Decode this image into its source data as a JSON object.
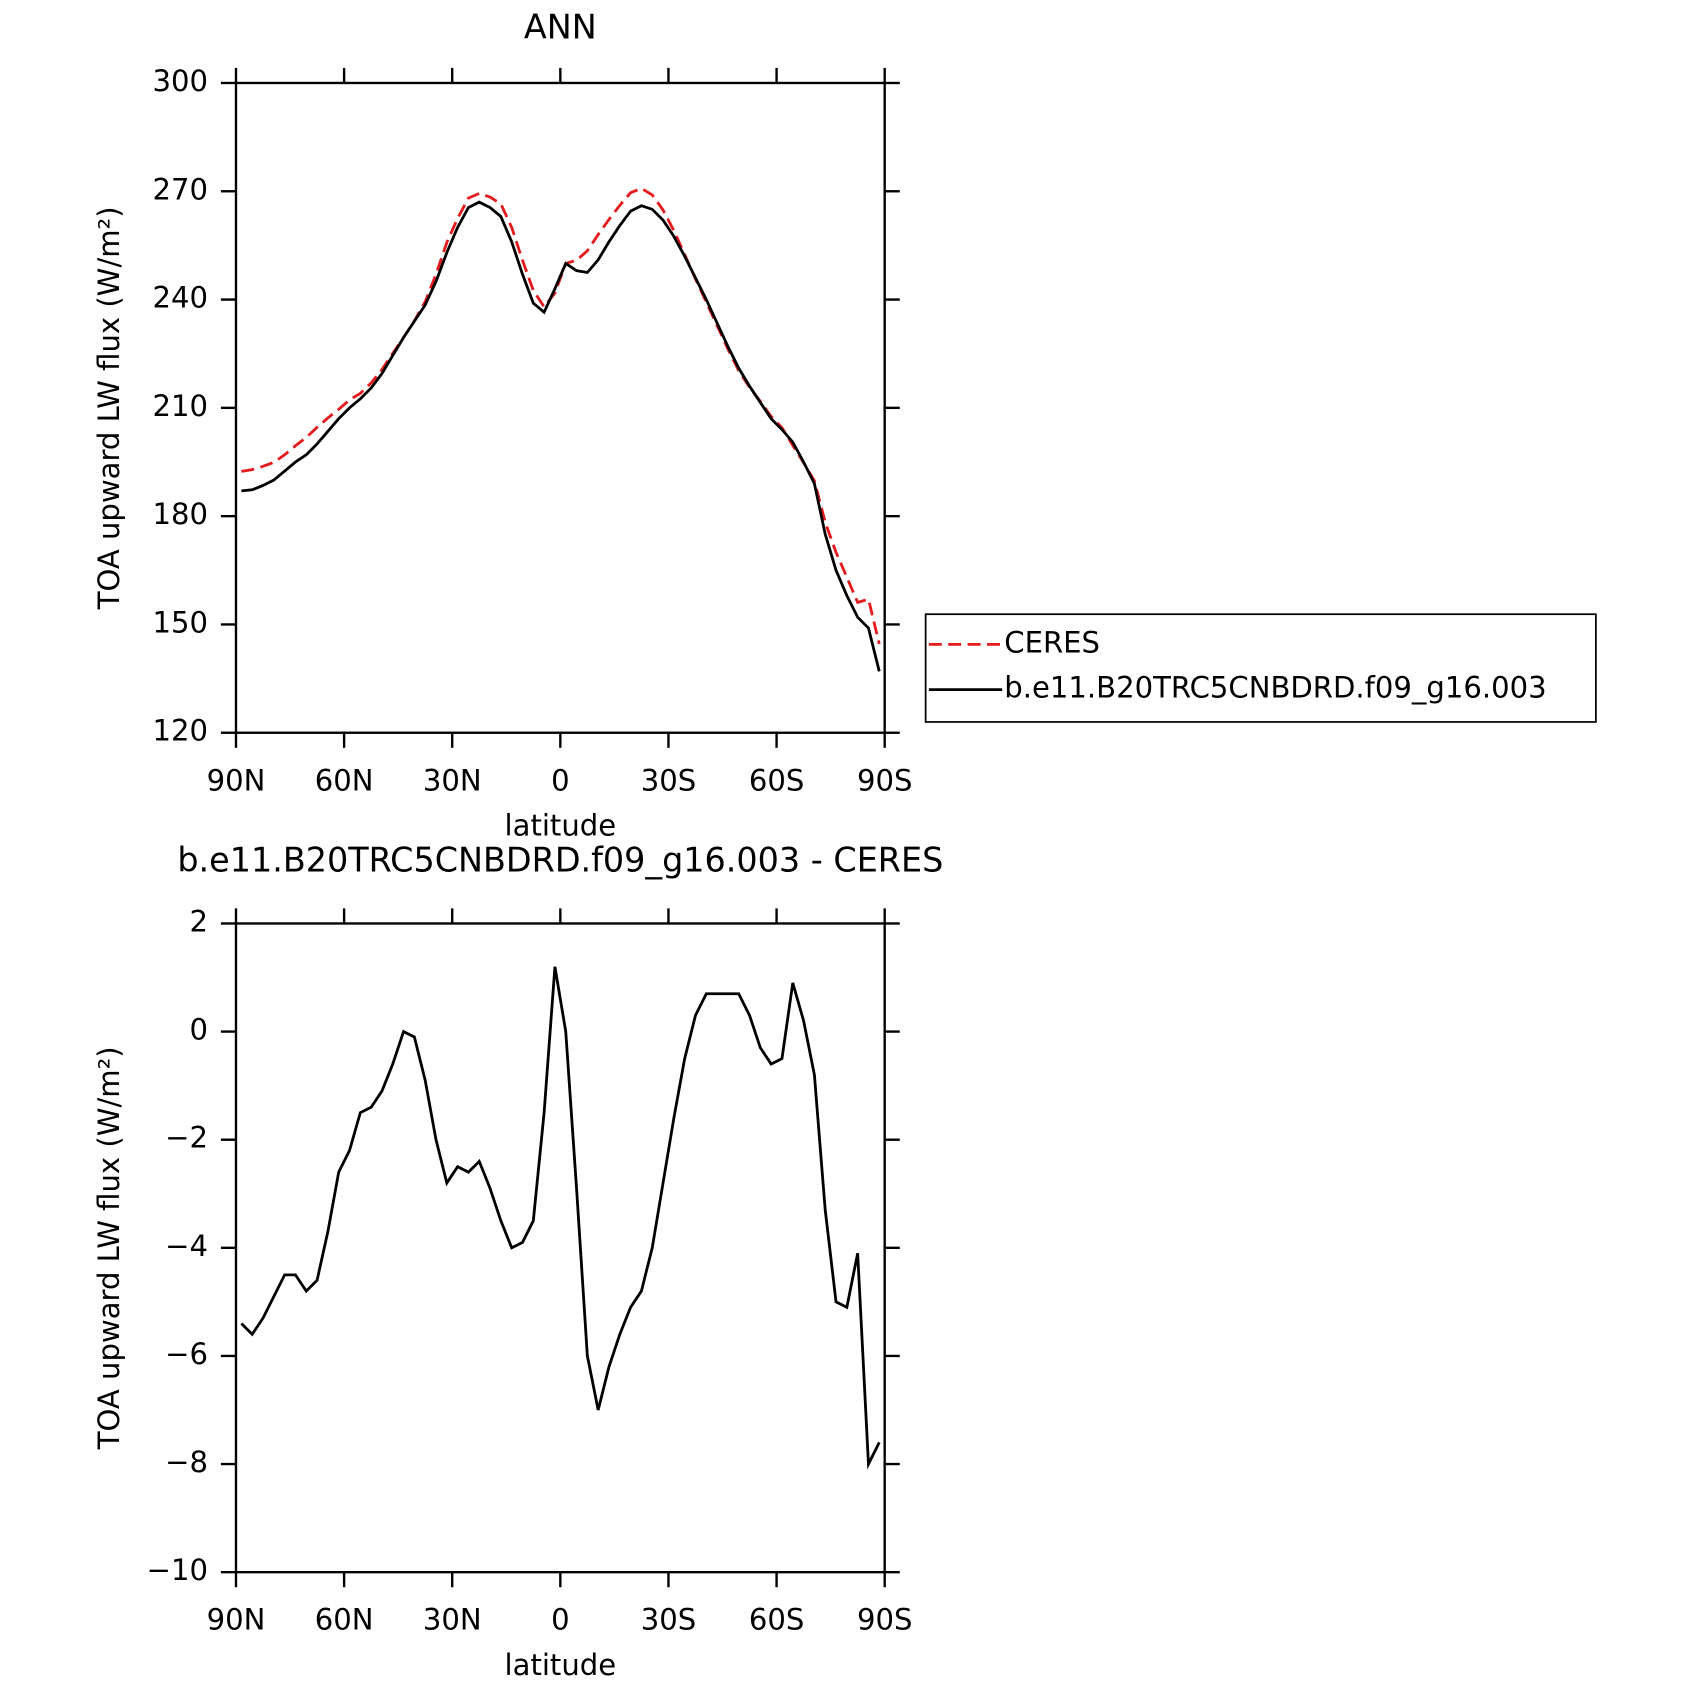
{
  "chart_data": [
    {
      "type": "line",
      "title": "ANN",
      "x_label": "latitude",
      "y_label": "TOA upward LW flux (W/m²)",
      "x": [
        88.5,
        85.5,
        82.5,
        79.5,
        76.5,
        73.5,
        70.5,
        67.5,
        64.5,
        61.5,
        58.5,
        55.5,
        52.5,
        49.5,
        46.5,
        43.5,
        40.5,
        37.5,
        34.5,
        31.5,
        28.5,
        25.5,
        22.5,
        19.5,
        16.5,
        13.5,
        10.5,
        7.5,
        4.5,
        1.5,
        -1.5,
        -4.5,
        -7.5,
        -10.5,
        -13.5,
        -16.5,
        -19.5,
        -22.5,
        -25.5,
        -28.5,
        -31.5,
        -34.5,
        -37.5,
        -40.5,
        -43.5,
        -46.5,
        -49.5,
        -52.5,
        -55.5,
        -58.5,
        -61.5,
        -64.5,
        -67.5,
        -70.5,
        -73.5,
        -76.5,
        -79.5,
        -82.5,
        -85.5,
        -88.5
      ],
      "series": [
        {
          "name": "CERES",
          "color": "#e41a1c",
          "dash": true,
          "values": [
            192.4,
            192.9,
            193.8,
            194.9,
            197,
            199.5,
            201.8,
            204.6,
            207.2,
            209.6,
            212.2,
            214,
            216.9,
            220.6,
            225.1,
            229.5,
            234.1,
            239.4,
            247,
            255.8,
            262.5,
            268.1,
            269.4,
            268.4,
            266.5,
            260,
            250.9,
            242.5,
            238,
            241.8,
            250,
            250.9,
            253.5,
            258,
            262.2,
            266.1,
            269.6,
            270.8,
            269,
            264.8,
            259.1,
            252.5,
            245.7,
            239.3,
            232.8,
            226.3,
            220.3,
            215.7,
            211.8,
            207.6,
            204.5,
            199.6,
            194.8,
            189.8,
            178.3,
            170,
            163.1,
            156.1,
            157,
            144.6
          ]
        },
        {
          "name": "b.e11.B20TRC5CNBDRD.f09_g16.003",
          "color": "#000000",
          "dash": false,
          "values": [
            187,
            187.3,
            188.5,
            190,
            192.5,
            195,
            197,
            200,
            203.5,
            207,
            210,
            212.5,
            215.5,
            219.5,
            224.5,
            229.5,
            234,
            238.5,
            245,
            253,
            260,
            265.5,
            267,
            265.5,
            263,
            256,
            247,
            239,
            236.5,
            243,
            250,
            248,
            247.5,
            251,
            256,
            260.5,
            264.5,
            266,
            265,
            262,
            257.5,
            252,
            246,
            240,
            233.5,
            227,
            221,
            216,
            211.5,
            207,
            204,
            200.5,
            195,
            189,
            175,
            165,
            158,
            152,
            149,
            137
          ]
        }
      ],
      "xlim": [
        90,
        -90
      ],
      "xticks": [
        {
          "value": 90,
          "label": "90N"
        },
        {
          "value": 60,
          "label": "60N"
        },
        {
          "value": 30,
          "label": "30N"
        },
        0,
        {
          "value": -30,
          "label": "30S"
        },
        {
          "value": -60,
          "label": "60S"
        },
        {
          "value": -90,
          "label": "90S"
        }
      ],
      "ylim": [
        120,
        300
      ],
      "yticks": [
        120,
        150,
        180,
        210,
        240,
        270,
        300
      ],
      "legend": "right"
    },
    {
      "type": "line",
      "title": "b.e11.B20TRC5CNBDRD.f09_g16.003 - CERES",
      "x_label": "latitude",
      "y_label": "TOA upward LW flux (W/m²)",
      "x": [
        88.5,
        85.5,
        82.5,
        79.5,
        76.5,
        73.5,
        70.5,
        67.5,
        64.5,
        61.5,
        58.5,
        55.5,
        52.5,
        49.5,
        46.5,
        43.5,
        40.5,
        37.5,
        34.5,
        31.5,
        28.5,
        25.5,
        22.5,
        19.5,
        16.5,
        13.5,
        10.5,
        7.5,
        4.5,
        1.5,
        -1.5,
        -4.5,
        -7.5,
        -10.5,
        -13.5,
        -16.5,
        -19.5,
        -22.5,
        -25.5,
        -28.5,
        -31.5,
        -34.5,
        -37.5,
        -40.5,
        -43.5,
        -46.5,
        -49.5,
        -52.5,
        -55.5,
        -58.5,
        -61.5,
        -64.5,
        -67.5,
        -70.5,
        -73.5,
        -76.5,
        -79.5,
        -82.5,
        -85.5,
        -88.5
      ],
      "series": [
        {
          "color": "#000000",
          "values": [
            -5.4,
            -5.6,
            -5.3,
            -4.9,
            -4.5,
            -4.5,
            -4.8,
            -4.6,
            -3.7,
            -2.6,
            -2.2,
            -1.5,
            -1.4,
            -1.1,
            -0.6,
            0,
            -0.1,
            -0.9,
            -2.0,
            -2.8,
            -2.5,
            -2.6,
            -2.4,
            -2.9,
            -3.5,
            -4.0,
            -3.9,
            -3.5,
            -1.5,
            1.2,
            0,
            -2.9,
            -6.0,
            -7.0,
            -6.2,
            -5.6,
            -5.1,
            -4.8,
            -4.0,
            -2.8,
            -1.6,
            -0.5,
            0.3,
            0.7,
            0.7,
            0.7,
            0.7,
            0.3,
            -0.3,
            -0.6,
            -0.5,
            0.9,
            0.2,
            -0.8,
            -3.3,
            -5.0,
            -5.1,
            -4.1,
            -8.0,
            -7.6
          ]
        }
      ],
      "xlim": [
        90,
        -90
      ],
      "xticks": [
        {
          "value": 90,
          "label": "90N"
        },
        {
          "value": 60,
          "label": "60N"
        },
        {
          "value": 30,
          "label": "30N"
        },
        0,
        {
          "value": -30,
          "label": "30S"
        },
        {
          "value": -60,
          "label": "60S"
        },
        {
          "value": -90,
          "label": "90S"
        }
      ],
      "ylim": [
        -10,
        2
      ],
      "yticks": [
        {
          "value": -10,
          "label": "−10"
        },
        {
          "value": -8,
          "label": "−8"
        },
        {
          "value": -6,
          "label": "−6"
        },
        {
          "value": -4,
          "label": "−4"
        },
        {
          "value": -2,
          "label": "−2"
        },
        0,
        2
      ]
    }
  ]
}
